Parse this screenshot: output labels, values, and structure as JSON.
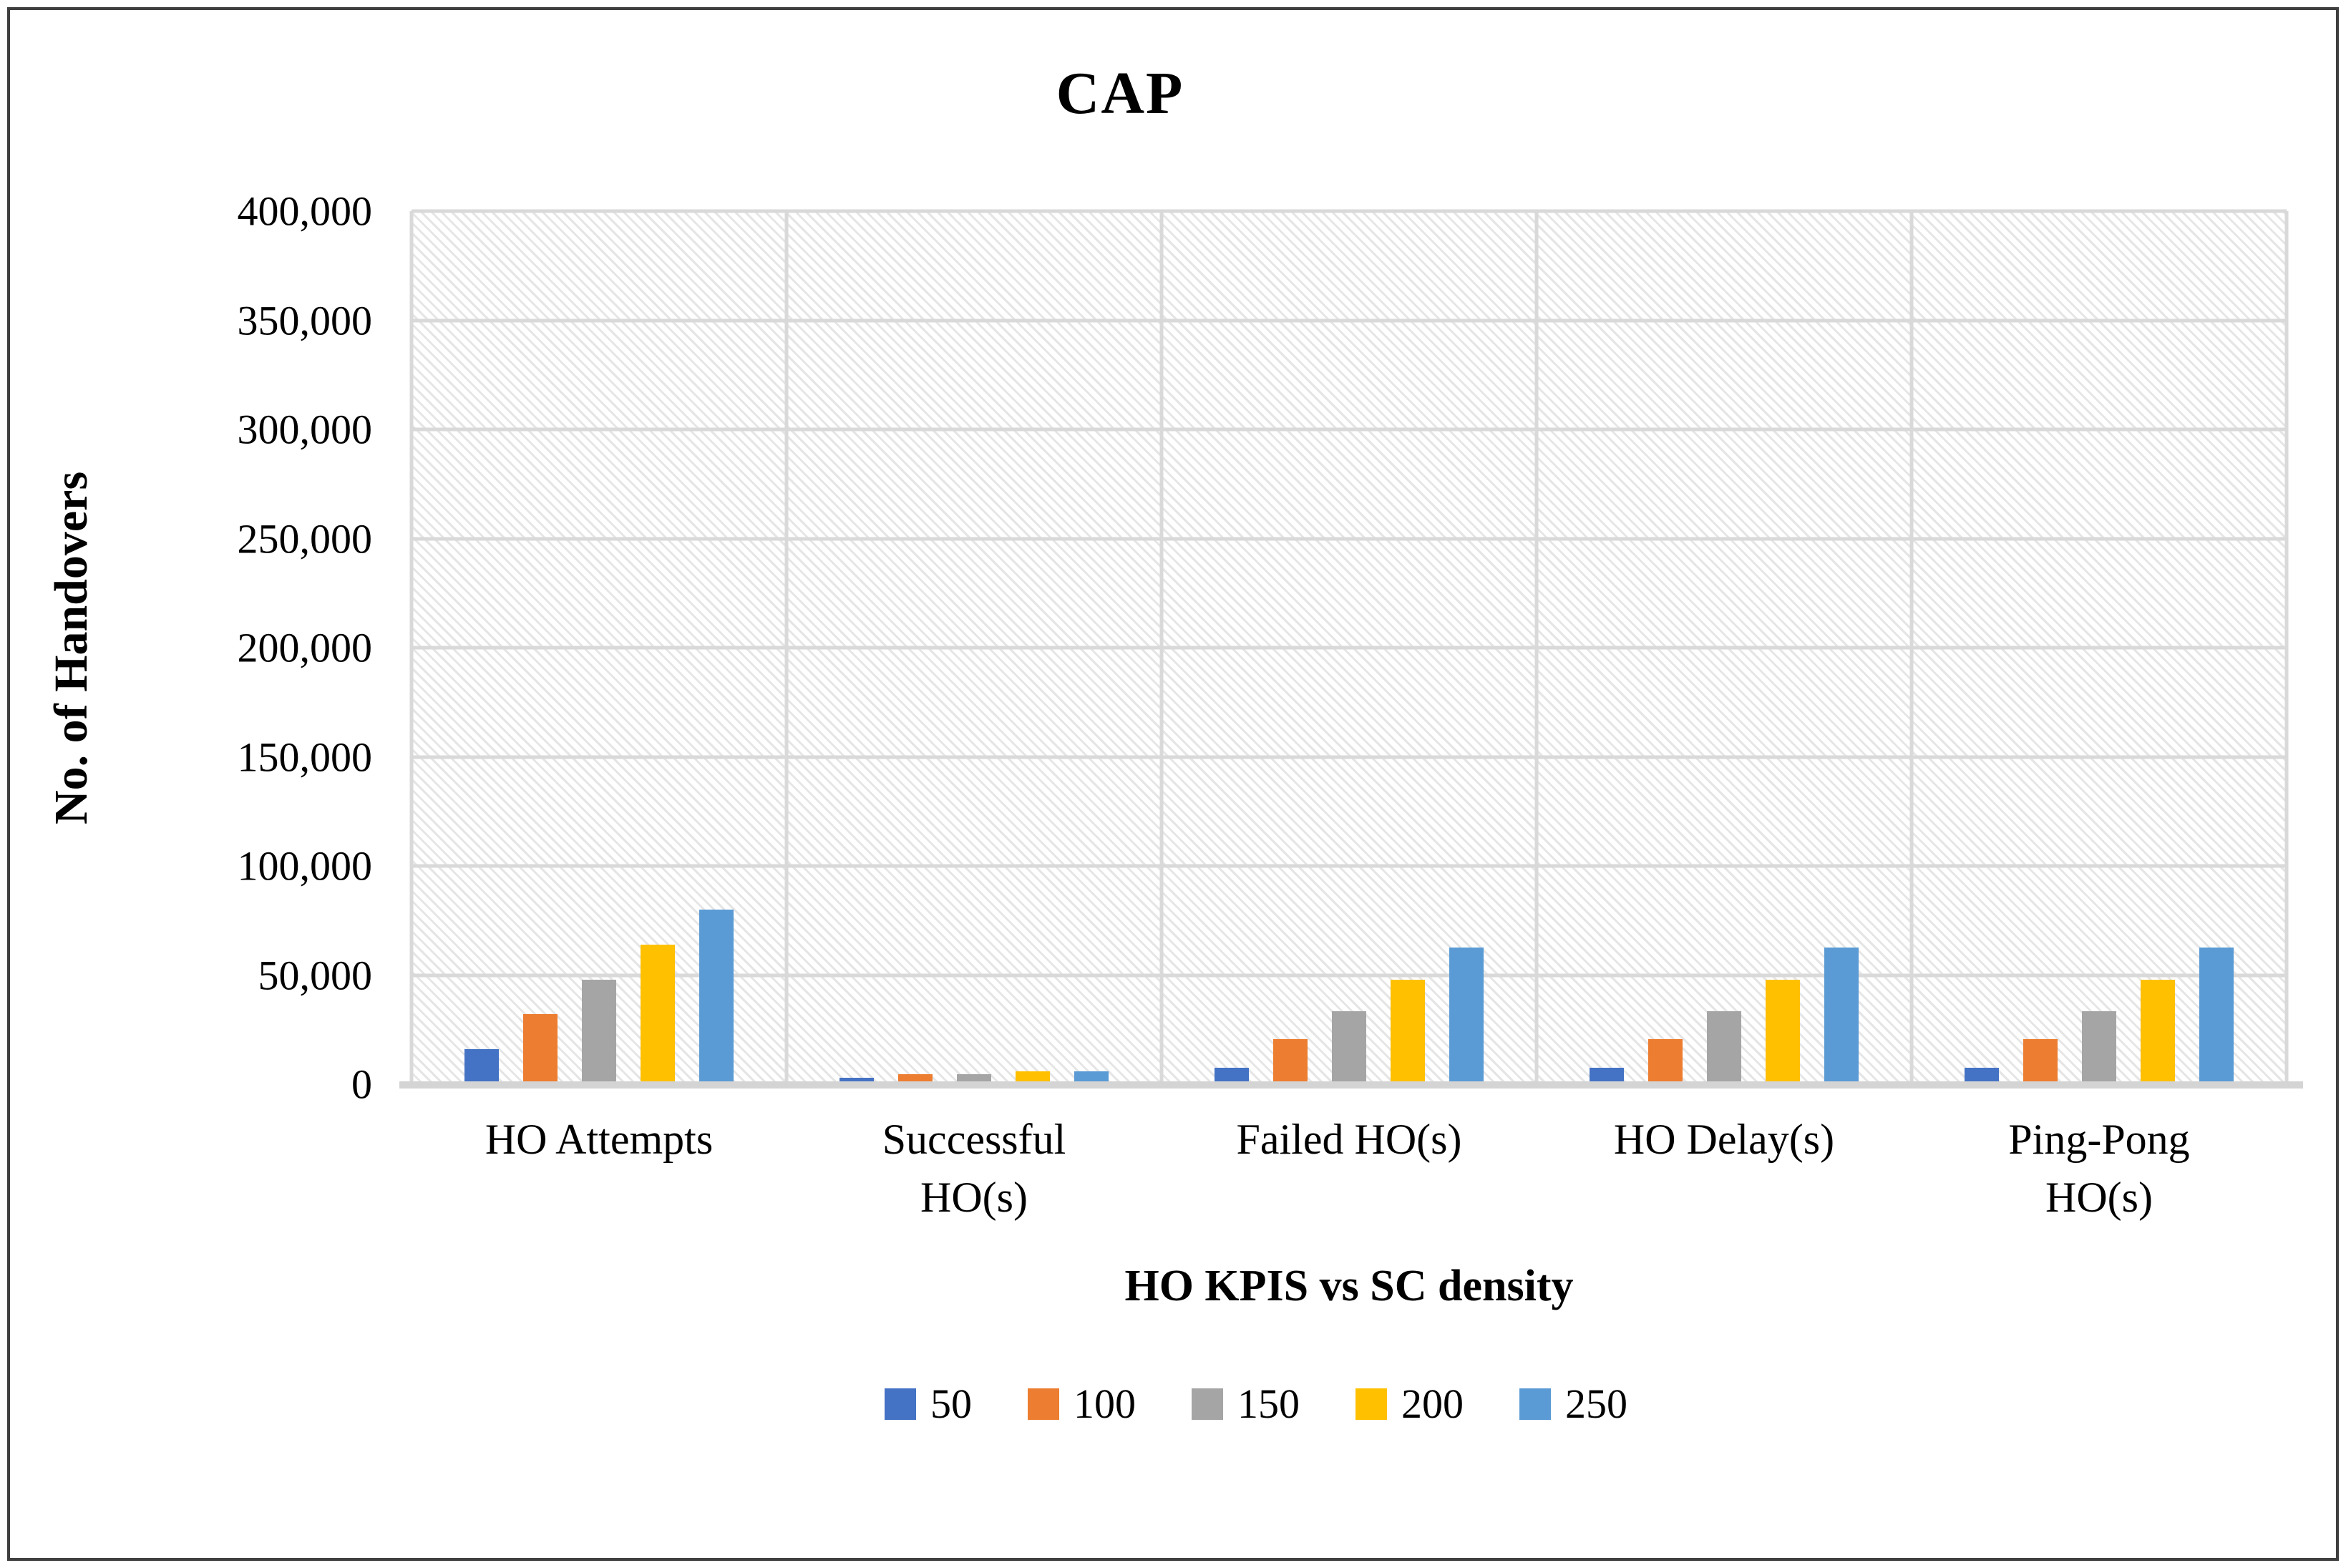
{
  "chart_data": {
    "type": "bar",
    "title": "CAP",
    "ylabel": "No. of Handovers",
    "xlabel": "HO KPIS vs SC density",
    "categories": [
      "HO Attempts",
      "Successful HO(s)",
      "Failed HO(s)",
      "HO Delay(s)",
      "Ping-Pong HO(s)"
    ],
    "category_labels": [
      "HO Attempts",
      "Successful\nHO(s)",
      "Failed HO(s)",
      "HO Delay(s)",
      "Ping-Pong\nHO(s)"
    ],
    "series": [
      {
        "name": "50",
        "color": "#4472C4",
        "values": [
          16000,
          3000,
          7500,
          7500,
          7500
        ]
      },
      {
        "name": "100",
        "color": "#ED7D31",
        "values": [
          32000,
          4500,
          20500,
          20500,
          20500
        ]
      },
      {
        "name": "150",
        "color": "#A5A5A5",
        "values": [
          48000,
          4500,
          33500,
          33500,
          33500
        ]
      },
      {
        "name": "200",
        "color": "#FFC000",
        "values": [
          64000,
          6000,
          48000,
          48000,
          48000
        ]
      },
      {
        "name": "250",
        "color": "#5B9BD5",
        "values": [
          80000,
          6000,
          62500,
          62500,
          62500
        ]
      }
    ],
    "ylim": [
      0,
      400000
    ],
    "ytick_step": 50000,
    "ytick_labels": [
      "400,000",
      "350,000",
      "300,000",
      "250,000",
      "200,000",
      "150,000",
      "100,000",
      "50,000",
      "0"
    ],
    "grid": {
      "horizontal": true,
      "vertical_category_separators": true,
      "color": "#D9D9D9"
    },
    "plot_background": "light-diagonal-hatch",
    "legend_position": "bottom"
  },
  "colors": {
    "axis_line": "#D4D4D4",
    "gridline": "#D9D9D9",
    "hatch": "#E3E3E3",
    "border": "#3F3F3F",
    "text": "#000000"
  }
}
